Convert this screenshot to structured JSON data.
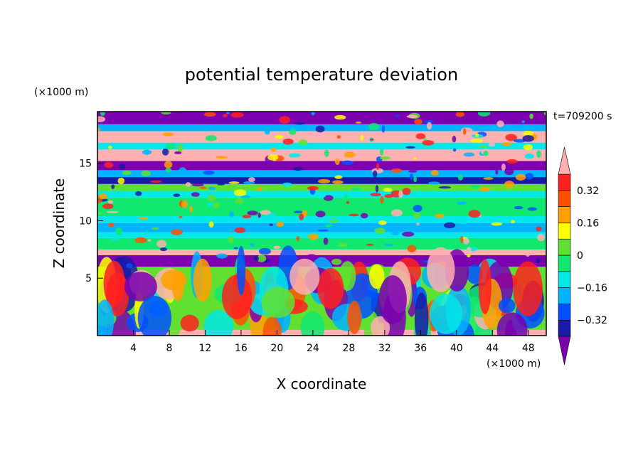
{
  "chart_data": {
    "type": "heatmap",
    "title": "potential temperature deviation",
    "xlabel": "X coordinate",
    "ylabel": "Z coordinate",
    "x_unit": "(×1000 m)",
    "y_unit": "(×1000 m)",
    "time_label": "t=709200 s",
    "xlim": [
      0,
      50
    ],
    "ylim": [
      0,
      19.5
    ],
    "x_ticks": [
      4,
      8,
      12,
      16,
      20,
      24,
      28,
      32,
      36,
      40,
      44,
      48
    ],
    "y_ticks": [
      5,
      10,
      15
    ],
    "colorbar": {
      "levels": [
        -0.4,
        -0.32,
        -0.24,
        -0.16,
        -0.08,
        0,
        0.08,
        0.16,
        0.24,
        0.32,
        0.4
      ],
      "labeled_levels": [
        0.32,
        0.16,
        0,
        -0.16,
        -0.32
      ],
      "label_text": [
        "0.32",
        "0.16",
        "0",
        "−0.16",
        "−0.32"
      ],
      "colors": [
        "#7a00b0",
        "#1a1aa8",
        "#0050ff",
        "#00b4ff",
        "#00e8e8",
        "#10e870",
        "#60e030",
        "#ffff00",
        "#ffa000",
        "#ff5000",
        "#ff2020",
        "#ffb0b0"
      ],
      "extend": "both"
    },
    "bands": [
      {
        "z": [
          0,
          0.5
        ],
        "level": 11
      },
      {
        "z": [
          0.5,
          6
        ],
        "level": 6
      },
      {
        "z": [
          6,
          7
        ],
        "level": 0
      },
      {
        "z": [
          7,
          7.5
        ],
        "level": 11
      },
      {
        "z": [
          7.5,
          8.5
        ],
        "level": 5
      },
      {
        "z": [
          8.5,
          9
        ],
        "level": 4
      },
      {
        "z": [
          9,
          9.8
        ],
        "level": 3
      },
      {
        "z": [
          9.8,
          10.4
        ],
        "level": 4
      },
      {
        "z": [
          10.4,
          12
        ],
        "level": 5
      },
      {
        "z": [
          12,
          12.6
        ],
        "level": 4
      },
      {
        "z": [
          12.6,
          13.2
        ],
        "level": 6
      },
      {
        "z": [
          13.2,
          13.8
        ],
        "level": 1
      },
      {
        "z": [
          13.8,
          14.4
        ],
        "level": 3
      },
      {
        "z": [
          14.4,
          15.2
        ],
        "level": 0
      },
      {
        "z": [
          15.2,
          16.2
        ],
        "level": 11
      },
      {
        "z": [
          16.2,
          16.8
        ],
        "level": 4
      },
      {
        "z": [
          16.8,
          17.8
        ],
        "level": 11
      },
      {
        "z": [
          17.8,
          18.4
        ],
        "level": 3
      },
      {
        "z": [
          18.4,
          19.5
        ],
        "level": 0
      }
    ]
  }
}
